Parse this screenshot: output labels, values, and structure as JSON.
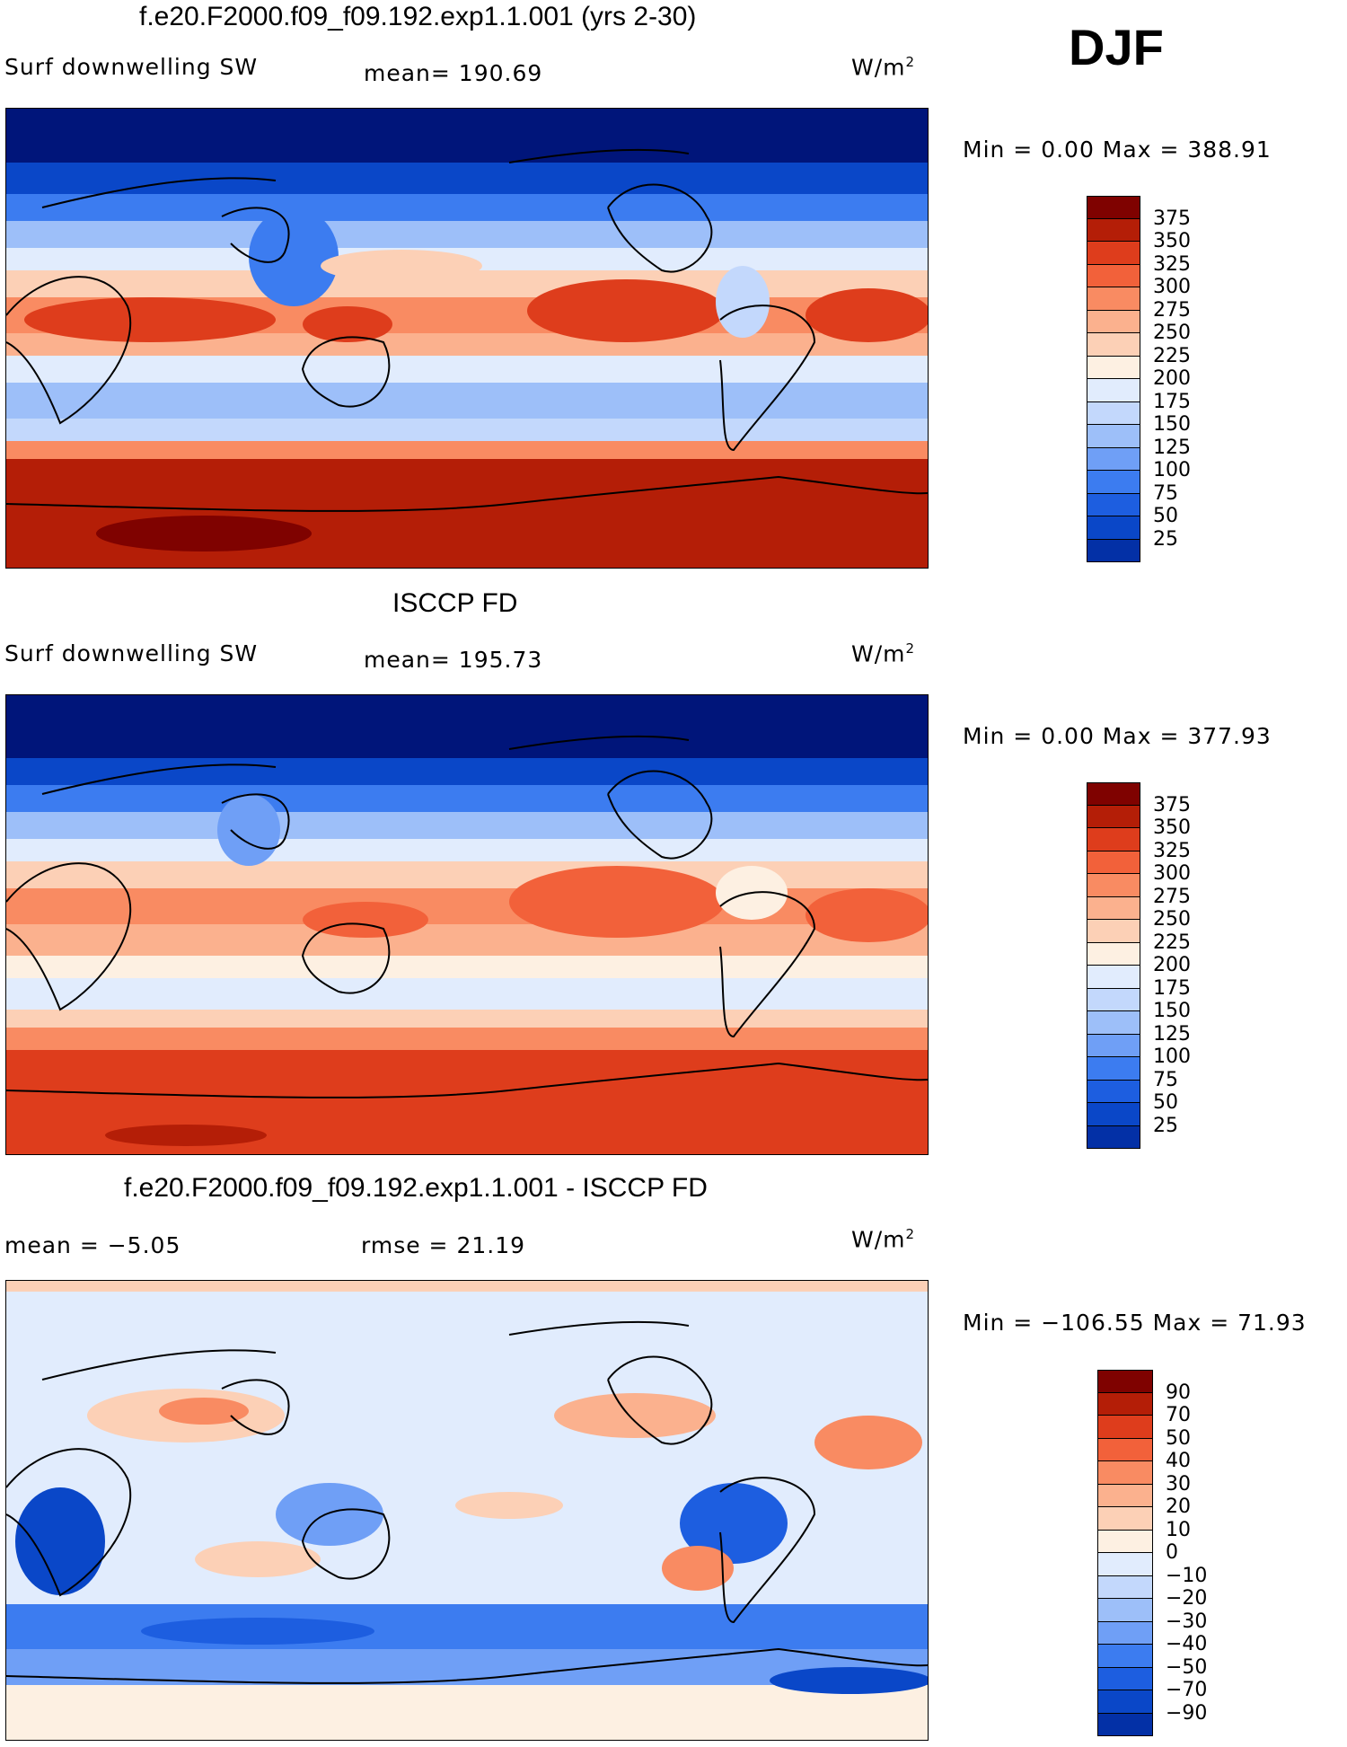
{
  "season_label": "DJF",
  "colors": {
    "seq_palette": [
      "#00157a",
      "#0330a6",
      "#0a47c8",
      "#1d5ee0",
      "#3c7cf0",
      "#6f9ff6",
      "#9dbff9",
      "#c3d8fc",
      "#e1ecfd",
      "#fdf0e2",
      "#fcd0b6",
      "#fbb18e",
      "#f98b62",
      "#f2613a",
      "#de3d1c",
      "#b41e07",
      "#7f0200"
    ],
    "div_palette": [
      "#00157a",
      "#0330a6",
      "#0a47c8",
      "#1d5ee0",
      "#3c7cf0",
      "#6f9ff6",
      "#9dbff9",
      "#c3d8fc",
      "#e1ecfd",
      "#fdf0e2",
      "#fcd0b6",
      "#fbb18e",
      "#f98b62",
      "#f2613a",
      "#de3d1c",
      "#b41e07",
      "#7f0200"
    ]
  },
  "panels": [
    {
      "title": "f.e20.F2000.f09_f09.192.exp1.1.001 (yrs 2-30)",
      "left_text": "Surf downwelling SW",
      "center_text": "mean= 190.69",
      "units": "W/m",
      "units_exp": "2",
      "minmax": "Min =    0.00  Max =  388.91",
      "colorbar_labels": [
        "375",
        "350",
        "325",
        "300",
        "275",
        "250",
        "225",
        "200",
        "175",
        "150",
        "125",
        "100",
        "75",
        "50",
        "25"
      ],
      "kind": "model"
    },
    {
      "title": "ISCCP FD",
      "left_text": "Surf downwelling SW",
      "center_text": "mean= 195.73",
      "units": "W/m",
      "units_exp": "2",
      "minmax": "Min =    0.00  Max =  377.93",
      "colorbar_labels": [
        "375",
        "350",
        "325",
        "300",
        "275",
        "250",
        "225",
        "200",
        "175",
        "150",
        "125",
        "100",
        "75",
        "50",
        "25"
      ],
      "kind": "obs"
    },
    {
      "title": "f.e20.F2000.f09_f09.192.exp1.1.001 - ISCCP FD",
      "left_text": "mean =   −5.05",
      "center_text": "rmse =   21.19",
      "units": "W/m",
      "units_exp": "2",
      "minmax": "Min = −106.55  Max =   71.93",
      "colorbar_labels": [
        "90",
        "70",
        "50",
        "40",
        "30",
        "20",
        "10",
        "0",
        "−10",
        "−20",
        "−30",
        "−40",
        "−50",
        "−70",
        "−90"
      ],
      "kind": "diff"
    }
  ]
}
